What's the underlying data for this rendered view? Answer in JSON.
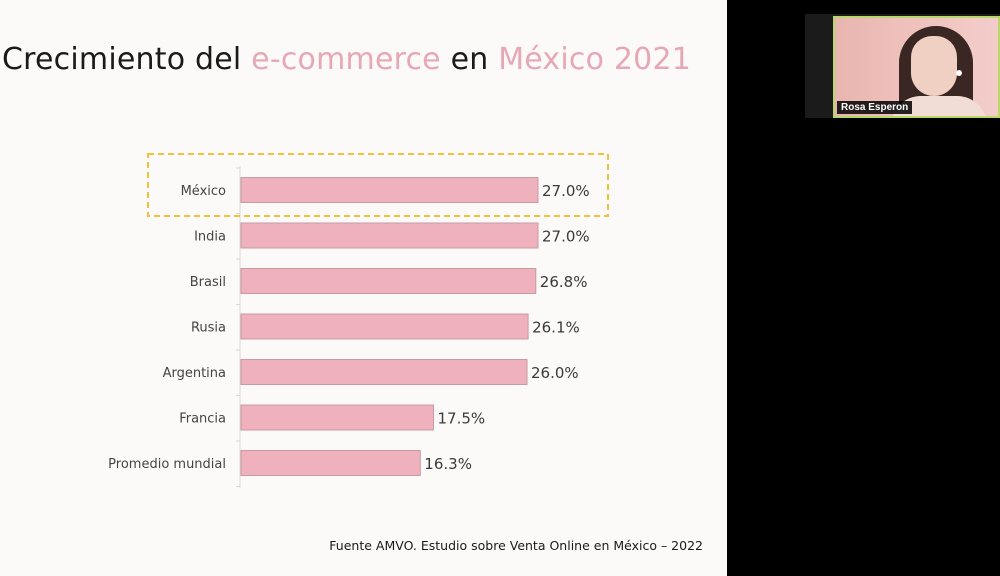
{
  "slide": {
    "title": {
      "part1": "Crecimiento del ",
      "part2": "e-commerce",
      "part3": " en ",
      "part4": "México 2021"
    },
    "source": "Fuente AMVO. Estudio sobre Venta Online en México – 2022"
  },
  "chart_data": {
    "type": "bar",
    "orientation": "horizontal",
    "title": "Crecimiento del e-commerce en México 2021",
    "categories": [
      "México",
      "India",
      "Brasil",
      "Rusia",
      "Argentina",
      "Francia",
      "Promedio mundial"
    ],
    "values": [
      27.0,
      27.0,
      26.8,
      26.1,
      26.0,
      17.5,
      16.3
    ],
    "value_labels": [
      "27.0%",
      "27.0%",
      "26.8%",
      "26.1%",
      "26.0%",
      "17.5%",
      "16.3%"
    ],
    "xlim": [
      0,
      27.0
    ],
    "highlighted_category": "México",
    "bar_color": "#efb2bd",
    "bar_border_color": "#c99aa3",
    "highlight_color": "#f0c23a",
    "grid": false,
    "legend": "none"
  },
  "video_call": {
    "participant_name": "Rosa Esperon",
    "active_speaker_color": "#b9d86a"
  }
}
